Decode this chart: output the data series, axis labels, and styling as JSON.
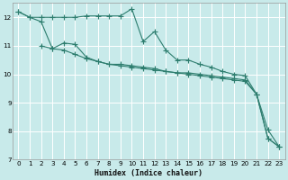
{
  "xlabel": "Humidex (Indice chaleur)",
  "bg_color": "#c8eaea",
  "grid_color": "#ffffff",
  "line_color": "#2d7d6e",
  "xlim": [
    -0.5,
    23.5
  ],
  "ylim": [
    7,
    12.5
  ],
  "yticks": [
    7,
    8,
    9,
    10,
    11,
    12
  ],
  "xticks": [
    0,
    1,
    2,
    3,
    4,
    5,
    6,
    7,
    8,
    9,
    10,
    11,
    12,
    13,
    14,
    15,
    16,
    17,
    18,
    19,
    20,
    21,
    22,
    23
  ],
  "series1_x": [
    0,
    1,
    2,
    3,
    4,
    5,
    6,
    7,
    8,
    9,
    10,
    11,
    12,
    13,
    14,
    15,
    16,
    17,
    18,
    19,
    20,
    21,
    22,
    23
  ],
  "series1_y": [
    12.2,
    12.0,
    12.0,
    12.0,
    12.0,
    12.0,
    12.05,
    12.05,
    12.05,
    12.05,
    12.3,
    11.15,
    11.5,
    10.85,
    10.5,
    10.5,
    10.35,
    10.25,
    10.1,
    10.0,
    9.95,
    9.3,
    7.75,
    7.45
  ],
  "series2_x": [
    0,
    1,
    2,
    3,
    4,
    5,
    6,
    7,
    8,
    9,
    10,
    11,
    12,
    13,
    14,
    15,
    16,
    17,
    18,
    19,
    20,
    21,
    22,
    23
  ],
  "series2_y": [
    12.2,
    12.0,
    11.85,
    10.9,
    10.85,
    10.7,
    10.55,
    10.45,
    10.35,
    10.3,
    10.25,
    10.2,
    10.15,
    10.1,
    10.05,
    10.0,
    9.95,
    9.9,
    9.85,
    9.8,
    9.75,
    9.3,
    8.05,
    7.45
  ],
  "series3_x": [
    2,
    3,
    4,
    5,
    6,
    7,
    8,
    9,
    10,
    11,
    12,
    13,
    14,
    15,
    16,
    17,
    18,
    19,
    20,
    21,
    22,
    23
  ],
  "series3_y": [
    11.0,
    10.9,
    11.1,
    11.05,
    10.6,
    10.45,
    10.35,
    10.35,
    10.3,
    10.25,
    10.2,
    10.1,
    10.05,
    10.05,
    10.0,
    9.95,
    9.9,
    9.85,
    9.8,
    9.3,
    7.75,
    7.45
  ]
}
